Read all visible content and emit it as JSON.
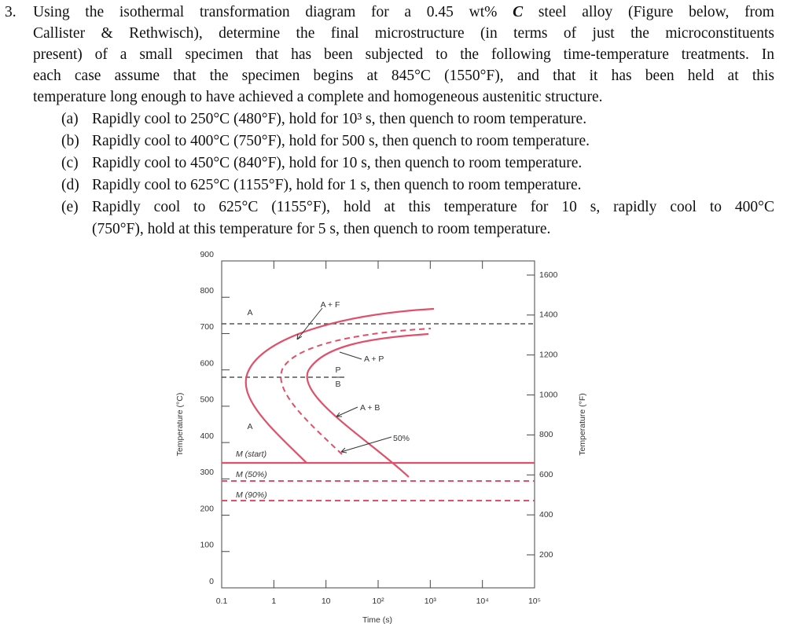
{
  "problem": {
    "number": "3.",
    "lines": [
      [
        "Using the isothermal transformation diagram for a 0.45 wt% ",
        "C",
        " steel alloy (Figure below, from"
      ],
      "Callister & Rethwisch), determine the final microstructure (in terms of just the microconstituents",
      "present) of a small specimen that has been subjected to the following time-temperature treatments. In",
      "each case assume that the specimen begins at 845°C (1550°F), and that it has been held at this",
      "temperature long enough to have achieved a complete and homogeneous austenitic structure."
    ],
    "items": [
      {
        "label": "(a)",
        "lines": [
          "Rapidly cool to 250°C (480°F), hold for 10³ s, then quench to room temperature."
        ]
      },
      {
        "label": "(b)",
        "lines": [
          "Rapidly cool to 400°C (750°F), hold for 500 s, then quench to room temperature."
        ]
      },
      {
        "label": "(c)",
        "lines": [
          "Rapidly cool to 450°C (840°F), hold for 10 s, then quench to room temperature."
        ]
      },
      {
        "label": "(d)",
        "lines": [
          "Rapidly cool to 625°C (1155°F), hold for 1 s, then quench to room temperature."
        ]
      },
      {
        "label": "(e)",
        "lines": [
          "Rapidly cool to 625°C (1155°F), hold at this temperature for 10 s, rapidly cool to 400°C",
          "(750°F), hold at this temperature for 5 s, then quench to room temperature."
        ]
      }
    ]
  },
  "figure": {
    "y_label": "Temperature (°C)",
    "y2_label": "Temperature (°F)",
    "x_label": "Time (s)",
    "y_ticks": [
      "0",
      "100",
      "200",
      "300",
      "400",
      "500",
      "600",
      "700",
      "800",
      "900"
    ],
    "y2_ticks": [
      "200",
      "400",
      "600",
      "800",
      "1000",
      "1200",
      "1400",
      "1600"
    ],
    "x_ticks": [
      "0.1",
      "1",
      "10",
      "10²",
      "10³",
      "10⁴",
      "10⁵"
    ],
    "labels": {
      "a_top": "A",
      "a_f": "A + F",
      "a_p": "A + P",
      "p": "P",
      "b": "B",
      "a_b": "A + B",
      "a_low": "A",
      "fifty": "50%",
      "m_start": "M (start)",
      "m_50": "M (50%)",
      "m_90": "M (90%)"
    }
  }
}
